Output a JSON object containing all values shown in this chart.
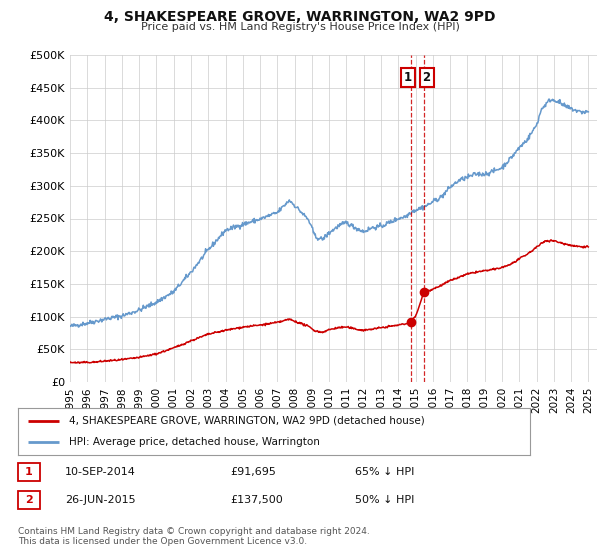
{
  "title": "4, SHAKESPEARE GROVE, WARRINGTON, WA2 9PD",
  "subtitle": "Price paid vs. HM Land Registry's House Price Index (HPI)",
  "ylim": [
    0,
    500000
  ],
  "yticks": [
    0,
    50000,
    100000,
    150000,
    200000,
    250000,
    300000,
    350000,
    400000,
    450000,
    500000
  ],
  "ytick_labels": [
    "£0",
    "£50K",
    "£100K",
    "£150K",
    "£200K",
    "£250K",
    "£300K",
    "£350K",
    "£400K",
    "£450K",
    "£500K"
  ],
  "xlim_start": 1995.0,
  "xlim_end": 2025.5,
  "xticks": [
    1995,
    1996,
    1997,
    1998,
    1999,
    2000,
    2001,
    2002,
    2003,
    2004,
    2005,
    2006,
    2007,
    2008,
    2009,
    2010,
    2011,
    2012,
    2013,
    2014,
    2015,
    2016,
    2017,
    2018,
    2019,
    2020,
    2021,
    2022,
    2023,
    2024,
    2025
  ],
  "red_color": "#cc0000",
  "blue_color": "#6699cc",
  "vline_x1": 2014.71,
  "vline_x2": 2015.49,
  "vline_color": "#cc0000",
  "marker1_x": 2014.71,
  "marker1_y": 91695,
  "marker2_x": 2015.49,
  "marker2_y": 137500,
  "legend_label_red": "4, SHAKESPEARE GROVE, WARRINGTON, WA2 9PD (detached house)",
  "legend_label_blue": "HPI: Average price, detached house, Warrington",
  "annotation1_date": "10-SEP-2014",
  "annotation1_price": "£91,695",
  "annotation1_hpi": "65% ↓ HPI",
  "annotation2_date": "26-JUN-2015",
  "annotation2_price": "£137,500",
  "annotation2_hpi": "50% ↓ HPI",
  "footer": "Contains HM Land Registry data © Crown copyright and database right 2024.\nThis data is licensed under the Open Government Licence v3.0.",
  "background_color": "#ffffff",
  "grid_color": "#cccccc"
}
